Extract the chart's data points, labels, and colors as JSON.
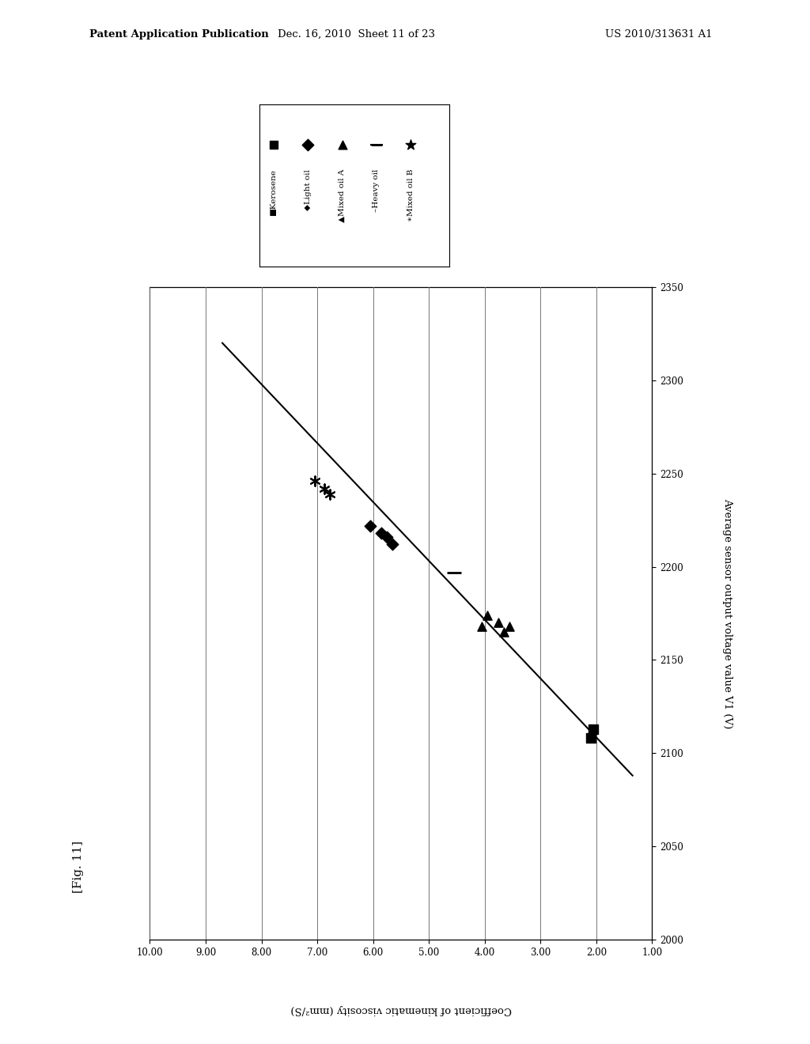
{
  "fig_label": "[Fig. 11]",
  "xlabel": "Coefficient of kinematic viscosity (mm²/S)",
  "ylabel": "Average sensor output voltage value V1 (V)",
  "header_left": "Patent Application Publication",
  "header_mid": "Dec. 16, 2010  Sheet 11 of 23",
  "header_right": "US 2010/313631 A1",
  "xlim": [
    10.0,
    1.0
  ],
  "ylim": [
    2000,
    2350
  ],
  "xticks": [
    10.0,
    9.0,
    8.0,
    7.0,
    6.0,
    5.0,
    4.0,
    3.0,
    2.0,
    1.0
  ],
  "xticklabels": [
    "10.00",
    "9.00",
    "8.00",
    "7.00",
    "6.00",
    "5.00",
    "4.00",
    "3.00",
    "2.00",
    "1.00"
  ],
  "yticks": [
    2000,
    2050,
    2100,
    2150,
    2200,
    2250,
    2300,
    2350
  ],
  "yticklabels": [
    "2000",
    "2050",
    "2100",
    "2150",
    "2200",
    "2250",
    "2300",
    "2350"
  ],
  "kerosene_visc": [
    2.05,
    2.1
  ],
  "kerosene_volt": [
    2113,
    2108
  ],
  "light_oil_visc": [
    5.85,
    6.05,
    5.65,
    5.75
  ],
  "light_oil_volt": [
    2218,
    2222,
    2212,
    2216
  ],
  "mixed_a_visc": [
    3.75,
    3.95,
    3.55,
    3.65,
    4.05
  ],
  "mixed_a_volt": [
    2170,
    2174,
    2168,
    2165,
    2168
  ],
  "heavy_visc": [
    4.55
  ],
  "heavy_volt": [
    2197
  ],
  "mixed_b_visc": [
    6.88,
    7.05,
    6.78
  ],
  "mixed_b_volt": [
    2242,
    2246,
    2239
  ],
  "trend_visc": [
    1.35,
    8.7
  ],
  "trend_volt": [
    2088,
    2320
  ],
  "legend_entries": [
    {
      "marker": "s",
      "label": "Kerosene"
    },
    {
      "marker": "D",
      "label": "Light oil"
    },
    {
      "marker": "^",
      "label": "Mixed oil A"
    },
    {
      "marker": "_",
      "label": "Heavy oil"
    },
    {
      "marker": "*",
      "label": "Mixed oil B"
    }
  ],
  "background": "#ffffff",
  "marker_color": "#000000",
  "line_color": "#000000",
  "grid_color": "#555555"
}
